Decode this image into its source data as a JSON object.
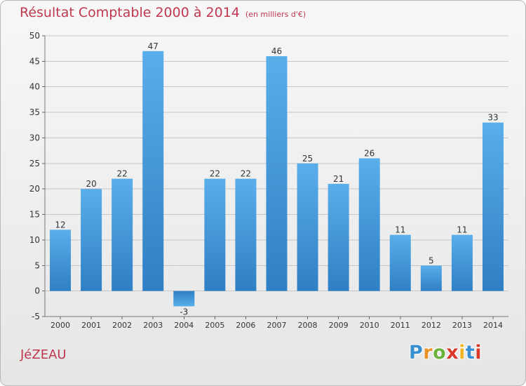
{
  "header": {
    "title": "Résultat Comptable 2000 à 2014",
    "subtitle": "(en milliers d'€)"
  },
  "footer": {
    "commune": "JéZEAU",
    "logo": {
      "letters": [
        "P",
        "r",
        "o",
        "x",
        "i",
        "t",
        "i"
      ],
      "colors": [
        "#3a8fd0",
        "#e8932a",
        "#6bb33e",
        "#d9382b",
        "#f0b324",
        "#3a8fd0",
        "#d9382b"
      ]
    }
  },
  "colors": {
    "bar_top": "#5aaeea",
    "bar_bottom": "#2f7fc4",
    "grid": "#c6c6c6",
    "title": "#c0384f"
  },
  "chart_data": {
    "type": "bar",
    "title": "Résultat Comptable 2000 à 2014",
    "subtitle": "(en milliers d'€)",
    "categories": [
      "2000",
      "2001",
      "2002",
      "2003",
      "2004",
      "2005",
      "2006",
      "2007",
      "2008",
      "2009",
      "2010",
      "2011",
      "2012",
      "2013",
      "2014"
    ],
    "values": [
      12,
      20,
      22,
      47,
      -3,
      22,
      22,
      46,
      25,
      21,
      26,
      11,
      5,
      11,
      33
    ],
    "ylim": [
      -5,
      50
    ],
    "yticks": [
      -5,
      0,
      5,
      10,
      15,
      20,
      25,
      30,
      35,
      40,
      45,
      50
    ],
    "grid": true,
    "xlabel": "",
    "ylabel": ""
  }
}
